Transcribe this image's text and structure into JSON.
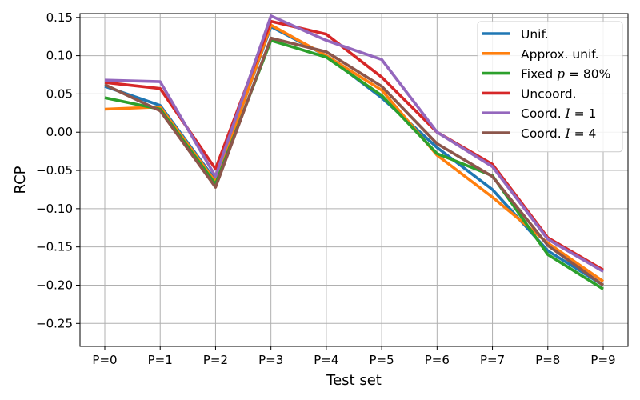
{
  "chart_data": {
    "type": "line",
    "title": "",
    "xlabel": "Test set",
    "ylabel": "RCP",
    "categories": [
      "P=0",
      "P=1",
      "P=2",
      "P=3",
      "P=4",
      "P=5",
      "P=6",
      "P=7",
      "P=8",
      "P=9"
    ],
    "ylim": [
      -0.28,
      0.155
    ],
    "yticks": [
      0.15,
      0.1,
      0.05,
      0.0,
      -0.05,
      -0.1,
      -0.15,
      -0.2,
      -0.25
    ],
    "ytick_labels": [
      "0.15",
      "0.10",
      "0.05",
      "0.00",
      "−0.05",
      "−0.10",
      "−0.15",
      "−0.20",
      "−0.25"
    ],
    "grid": true,
    "legend_position": "top-right",
    "series": [
      {
        "name": "Unif.",
        "color": "#1f77b4",
        "values": [
          0.06,
          0.035,
          -0.063,
          0.138,
          0.1,
          0.045,
          -0.02,
          -0.075,
          -0.155,
          -0.2
        ]
      },
      {
        "name": "Approx. unif.",
        "color": "#ff7f0e",
        "values": [
          0.03,
          0.033,
          -0.065,
          0.14,
          0.1,
          0.055,
          -0.03,
          -0.085,
          -0.145,
          -0.195
        ]
      },
      {
        "name": "Fixed p=80%",
        "color": "#2ca02c",
        "values": [
          0.045,
          0.03,
          -0.068,
          0.12,
          0.098,
          0.048,
          -0.028,
          -0.057,
          -0.16,
          -0.205
        ]
      },
      {
        "name": "Uncoord.",
        "color": "#d62728",
        "values": [
          0.065,
          0.057,
          -0.048,
          0.145,
          0.128,
          0.072,
          0.0,
          -0.042,
          -0.138,
          -0.18
        ]
      },
      {
        "name": "Coord. I=1",
        "color": "#9467bd",
        "values": [
          0.068,
          0.066,
          -0.058,
          0.152,
          0.12,
          0.095,
          0.0,
          -0.045,
          -0.14,
          -0.182
        ]
      },
      {
        "name": "Coord. I=4",
        "color": "#8c564b",
        "values": [
          0.062,
          0.028,
          -0.072,
          0.123,
          0.105,
          0.06,
          -0.015,
          -0.058,
          -0.148,
          -0.2
        ]
      }
    ]
  }
}
